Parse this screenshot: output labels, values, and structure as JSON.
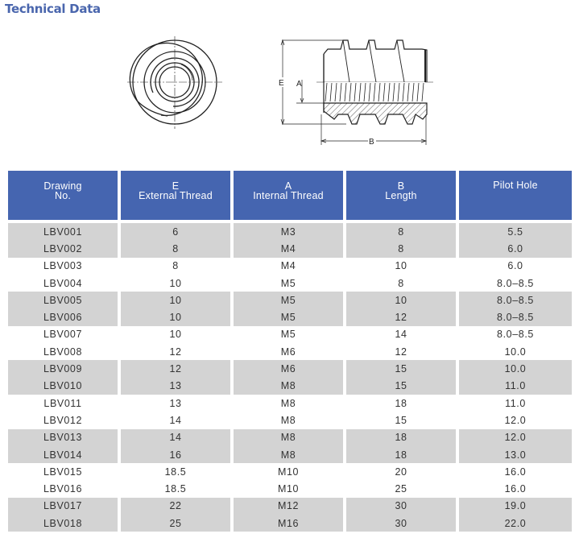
{
  "page": {
    "title": "Technical Data"
  },
  "drawing": {
    "labels": {
      "E": "E",
      "A": "A",
      "B": "B"
    }
  },
  "table": {
    "headers": [
      {
        "line1": "Drawing",
        "line2": "No."
      },
      {
        "line1": "E",
        "line2": "External Thread"
      },
      {
        "line1": "A",
        "line2": "Internal Thread"
      },
      {
        "line1": "B",
        "line2": "Length"
      },
      {
        "line1": "Pilot Hole",
        "line2": ""
      }
    ],
    "rows": [
      [
        "LBV001",
        "6",
        "M3",
        "8",
        "5.5"
      ],
      [
        "LBV002",
        "8",
        "M4",
        "8",
        "6.0"
      ],
      [
        "LBV003",
        "8",
        "M4",
        "10",
        "6.0"
      ],
      [
        "LBV004",
        "10",
        "M5",
        "8",
        "8.0–8.5"
      ],
      [
        "LBV005",
        "10",
        "M5",
        "10",
        "8.0–8.5"
      ],
      [
        "LBV006",
        "10",
        "M5",
        "12",
        "8.0–8.5"
      ],
      [
        "LBV007",
        "10",
        "M5",
        "14",
        "8.0–8.5"
      ],
      [
        "LBV008",
        "12",
        "M6",
        "12",
        "10.0"
      ],
      [
        "LBV009",
        "12",
        "M6",
        "15",
        "10.0"
      ],
      [
        "LBV010",
        "13",
        "M8",
        "15",
        "11.0"
      ],
      [
        "LBV011",
        "13",
        "M8",
        "18",
        "11.0"
      ],
      [
        "LBV012",
        "14",
        "M8",
        "15",
        "12.0"
      ],
      [
        "LBV013",
        "14",
        "M8",
        "18",
        "12.0"
      ],
      [
        "LBV014",
        "16",
        "M8",
        "18",
        "13.0"
      ],
      [
        "LBV015",
        "18.5",
        "M10",
        "20",
        "16.0"
      ],
      [
        "LBV016",
        "18.5",
        "M10",
        "25",
        "16.0"
      ],
      [
        "LBV017",
        "22",
        "M12",
        "30",
        "19.0"
      ],
      [
        "LBV018",
        "25",
        "M16",
        "30",
        "22.0"
      ]
    ]
  },
  "colors": {
    "title": "#4a66ad",
    "header_bg": "#4565b0",
    "shade_bg": "#d3d3d3",
    "text": "#333333"
  }
}
